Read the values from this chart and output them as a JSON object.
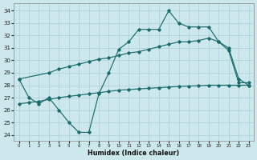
{
  "bg_color": "#cce8ec",
  "grid_color": "#aacdd4",
  "line_color": "#1a6b6b",
  "xlabel": "Humidex (Indice chaleur)",
  "xlim_min": -0.5,
  "xlim_max": 23.5,
  "ylim_min": 23.5,
  "ylim_max": 34.6,
  "xticks": [
    0,
    1,
    2,
    3,
    4,
    5,
    6,
    7,
    8,
    9,
    10,
    11,
    12,
    13,
    14,
    15,
    16,
    17,
    18,
    19,
    20,
    21,
    22,
    23
  ],
  "yticks": [
    24,
    25,
    26,
    27,
    28,
    29,
    30,
    31,
    32,
    33,
    34
  ],
  "curve1_x": [
    0,
    1,
    2,
    3,
    4,
    5,
    6,
    7,
    8,
    9,
    10,
    11,
    12,
    13,
    14,
    15,
    16,
    17,
    18,
    19,
    20,
    21,
    22,
    23
  ],
  "curve1_y": [
    28.5,
    27.0,
    26.5,
    27.0,
    26.0,
    25.0,
    24.2,
    24.2,
    27.3,
    29.0,
    30.9,
    31.5,
    32.5,
    32.5,
    32.5,
    34.0,
    33.0,
    32.7,
    32.7,
    32.7,
    31.5,
    30.8,
    28.2,
    28.2
  ],
  "curve2_x": [
    0,
    3,
    4,
    5,
    6,
    7,
    8,
    9,
    10,
    11,
    12,
    13,
    14,
    15,
    16,
    17,
    18,
    19,
    20,
    21,
    22,
    23
  ],
  "curve2_y": [
    28.5,
    29.0,
    29.3,
    29.5,
    29.7,
    29.9,
    30.1,
    30.2,
    30.4,
    30.6,
    30.7,
    30.9,
    31.1,
    31.3,
    31.5,
    31.5,
    31.6,
    31.8,
    31.5,
    31.0,
    28.5,
    28.0
  ],
  "curve3_x": [
    0,
    1,
    2,
    3,
    4,
    5,
    6,
    7,
    8,
    9,
    10,
    11,
    12,
    13,
    14,
    15,
    16,
    17,
    18,
    19,
    20,
    21,
    22,
    23
  ],
  "curve3_y": [
    26.5,
    26.6,
    26.7,
    26.85,
    27.0,
    27.1,
    27.2,
    27.3,
    27.4,
    27.5,
    27.6,
    27.65,
    27.7,
    27.75,
    27.8,
    27.85,
    27.9,
    27.93,
    27.96,
    28.0,
    28.0,
    28.0,
    28.0,
    28.0
  ]
}
